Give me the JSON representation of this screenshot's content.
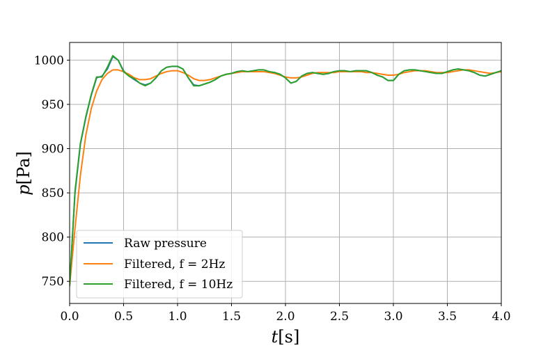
{
  "chart_data": {
    "type": "line",
    "xlabel_var": "t",
    "xlabel_unit": "[s]",
    "ylabel_var": "p",
    "ylabel_unit": "[Pa]",
    "xlim": [
      0.0,
      4.0
    ],
    "ylim": [
      725,
      1020
    ],
    "x_ticks": [
      0.0,
      0.5,
      1.0,
      1.5,
      2.0,
      2.5,
      3.0,
      3.5,
      4.0
    ],
    "x_tick_labels": [
      "0.0",
      "0.5",
      "1.0",
      "1.5",
      "2.0",
      "2.5",
      "3.0",
      "3.5",
      "4.0"
    ],
    "y_ticks": [
      750,
      800,
      850,
      900,
      950,
      1000
    ],
    "y_tick_labels": [
      "750",
      "800",
      "850",
      "900",
      "950",
      "1000"
    ],
    "grid": true,
    "legend_position": "lower-left",
    "series": [
      {
        "name": "Raw pressure",
        "color": "#1f77b4",
        "x": [
          0.0,
          0.05,
          0.1,
          0.15,
          0.2,
          0.25,
          0.3,
          0.35,
          0.4,
          0.45,
          0.5,
          0.55,
          0.6,
          0.65,
          0.7,
          0.75,
          0.8,
          0.85,
          0.9,
          0.95,
          1.0,
          1.05,
          1.1,
          1.15,
          1.2,
          1.25,
          1.3,
          1.35,
          1.4,
          1.45,
          1.5,
          1.55,
          1.6,
          1.65,
          1.7,
          1.75,
          1.8,
          1.85,
          1.9,
          1.95,
          2.0,
          2.05,
          2.1,
          2.15,
          2.2,
          2.25,
          2.3,
          2.35,
          2.4,
          2.45,
          2.5,
          2.55,
          2.6,
          2.65,
          2.7,
          2.75,
          2.8,
          2.85,
          2.9,
          2.95,
          3.0,
          3.05,
          3.1,
          3.15,
          3.2,
          3.25,
          3.3,
          3.35,
          3.4,
          3.45,
          3.5,
          3.55,
          3.6,
          3.65,
          3.7,
          3.75,
          3.8,
          3.85,
          3.9,
          3.95,
          4.0
        ],
        "y": [
          745,
          850,
          905,
          935,
          960,
          980,
          982,
          990,
          1004,
          1000,
          988,
          982,
          978,
          974,
          972,
          974,
          980,
          988,
          992,
          993,
          993,
          990,
          980,
          972,
          971,
          973,
          975,
          978,
          982,
          984,
          985,
          987,
          988,
          987,
          988,
          989,
          989,
          987,
          986,
          984,
          980,
          974,
          976,
          982,
          985,
          986,
          985,
          984,
          985,
          987,
          988,
          988,
          987,
          988,
          988,
          988,
          986,
          983,
          981,
          977,
          977,
          984,
          988,
          989,
          989,
          988,
          987,
          986,
          985,
          985,
          987,
          989,
          990,
          989,
          988,
          986,
          983,
          982,
          984,
          986,
          988
        ]
      },
      {
        "name": "Filtered, f = 2Hz",
        "color": "#ff7f0e",
        "x": [
          0.0,
          0.05,
          0.1,
          0.15,
          0.2,
          0.25,
          0.3,
          0.35,
          0.4,
          0.45,
          0.5,
          0.55,
          0.6,
          0.65,
          0.7,
          0.75,
          0.8,
          0.85,
          0.9,
          0.95,
          1.0,
          1.05,
          1.1,
          1.15,
          1.2,
          1.25,
          1.3,
          1.35,
          1.4,
          1.45,
          1.5,
          1.55,
          1.6,
          1.65,
          1.7,
          1.75,
          1.8,
          1.85,
          1.9,
          1.95,
          2.0,
          2.05,
          2.1,
          2.15,
          2.2,
          2.25,
          2.3,
          2.35,
          2.4,
          2.45,
          2.5,
          2.55,
          2.6,
          2.65,
          2.7,
          2.75,
          2.8,
          2.85,
          2.9,
          2.95,
          3.0,
          3.05,
          3.1,
          3.15,
          3.2,
          3.25,
          3.3,
          3.35,
          3.4,
          3.45,
          3.5,
          3.55,
          3.6,
          3.65,
          3.7,
          3.75,
          3.8,
          3.85,
          3.9,
          3.95,
          4.0
        ],
        "y": [
          745,
          810,
          870,
          915,
          945,
          965,
          978,
          985,
          989,
          989,
          987,
          984,
          980,
          978,
          978,
          979,
          982,
          985,
          987,
          988,
          988,
          986,
          983,
          979,
          977,
          977,
          978,
          980,
          982,
          984,
          985,
          986,
          987,
          987,
          987,
          987,
          987,
          986,
          985,
          983,
          981,
          980,
          980,
          981,
          983,
          985,
          986,
          986,
          986,
          986,
          987,
          987,
          987,
          987,
          987,
          986,
          986,
          985,
          984,
          983,
          983,
          984,
          986,
          987,
          988,
          988,
          988,
          987,
          986,
          986,
          986,
          987,
          988,
          989,
          989,
          988,
          987,
          986,
          985,
          986,
          987
        ]
      },
      {
        "name": "Filtered, f = 10Hz",
        "color": "#2ca02c",
        "x": [
          0.0,
          0.05,
          0.1,
          0.15,
          0.2,
          0.25,
          0.3,
          0.35,
          0.4,
          0.45,
          0.5,
          0.55,
          0.6,
          0.65,
          0.7,
          0.75,
          0.8,
          0.85,
          0.9,
          0.95,
          1.0,
          1.05,
          1.1,
          1.15,
          1.2,
          1.25,
          1.3,
          1.35,
          1.4,
          1.45,
          1.5,
          1.55,
          1.6,
          1.65,
          1.7,
          1.75,
          1.8,
          1.85,
          1.9,
          1.95,
          2.0,
          2.05,
          2.1,
          2.15,
          2.2,
          2.25,
          2.3,
          2.35,
          2.4,
          2.45,
          2.5,
          2.55,
          2.6,
          2.65,
          2.7,
          2.75,
          2.8,
          2.85,
          2.9,
          2.95,
          3.0,
          3.05,
          3.1,
          3.15,
          3.2,
          3.25,
          3.3,
          3.35,
          3.4,
          3.45,
          3.5,
          3.55,
          3.6,
          3.65,
          3.7,
          3.75,
          3.8,
          3.85,
          3.9,
          3.95,
          4.0
        ],
        "y": [
          745,
          852,
          906,
          936,
          961,
          981,
          981,
          992,
          1005,
          1000,
          987,
          982,
          979,
          974,
          971,
          974,
          980,
          988,
          992,
          993,
          993,
          990,
          980,
          971,
          971,
          973,
          975,
          978,
          982,
          984,
          985,
          987,
          988,
          987,
          988,
          989,
          989,
          987,
          986,
          984,
          980,
          974,
          976,
          982,
          985,
          986,
          985,
          984,
          985,
          987,
          988,
          988,
          987,
          988,
          988,
          988,
          986,
          983,
          981,
          977,
          977,
          984,
          988,
          989,
          989,
          988,
          987,
          986,
          985,
          985,
          987,
          989,
          990,
          989,
          988,
          986,
          983,
          982,
          984,
          986,
          988
        ]
      }
    ]
  }
}
